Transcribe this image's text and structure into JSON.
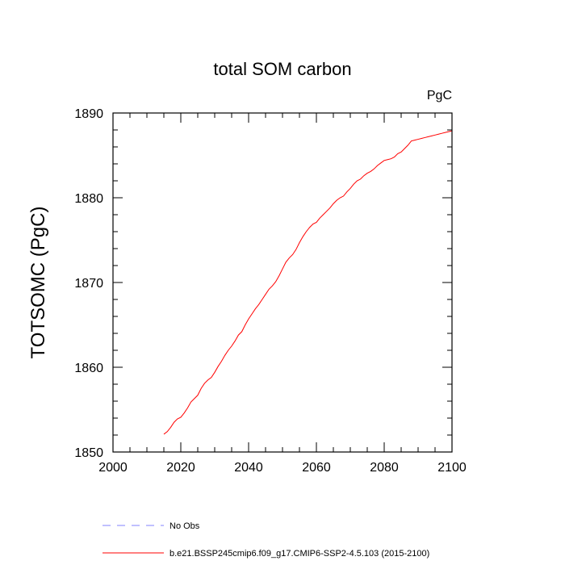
{
  "chart_data": {
    "type": "line",
    "title": "total SOM carbon",
    "units_label": "PgC",
    "ylabel": "TOTSOMC  (PgC)",
    "xlabel": "",
    "xlim": [
      2000,
      2100
    ],
    "ylim": [
      1850,
      1890
    ],
    "x_ticks": [
      2000,
      2020,
      2040,
      2060,
      2080,
      2100
    ],
    "y_ticks": [
      1850,
      1860,
      1870,
      1880,
      1890
    ],
    "x_tick_labels": [
      "2000",
      "2020",
      "2040",
      "2060",
      "2080",
      "2100"
    ],
    "y_tick_labels": [
      "1850",
      "1860",
      "1870",
      "1880",
      "1890"
    ],
    "series": [
      {
        "name": "b.e21.BSSP245cmip6.f09_g17.CMIP6-SSP2-4.5.103 (2015-2100)",
        "color": "#ff0000",
        "style": "solid",
        "x": [
          2015,
          2016,
          2017,
          2018,
          2019,
          2020,
          2021,
          2022,
          2023,
          2024,
          2025,
          2026,
          2027,
          2028,
          2029,
          2030,
          2031,
          2032,
          2033,
          2034,
          2035,
          2036,
          2037,
          2038,
          2039,
          2040,
          2041,
          2042,
          2043,
          2044,
          2045,
          2046,
          2047,
          2048,
          2049,
          2050,
          2051,
          2052,
          2053,
          2054,
          2055,
          2056,
          2057,
          2058,
          2059,
          2060,
          2061,
          2062,
          2063,
          2064,
          2065,
          2066,
          2067,
          2068,
          2069,
          2070,
          2071,
          2072,
          2073,
          2074,
          2075,
          2076,
          2077,
          2078,
          2079,
          2080,
          2081,
          2082,
          2083,
          2084,
          2085,
          2086,
          2087,
          2088,
          2089,
          2090,
          2091,
          2092,
          2093,
          2094,
          2095,
          2096,
          2097,
          2098,
          2099,
          2100
        ],
        "values": [
          1852.1,
          1852.4,
          1852.9,
          1853.5,
          1853.9,
          1854.1,
          1854.6,
          1855.2,
          1855.9,
          1856.3,
          1856.7,
          1857.5,
          1858.1,
          1858.5,
          1858.8,
          1859.4,
          1860.1,
          1860.7,
          1861.4,
          1862.0,
          1862.5,
          1863.1,
          1863.8,
          1864.2,
          1865.0,
          1865.7,
          1866.3,
          1866.9,
          1867.4,
          1868.0,
          1868.6,
          1869.2,
          1869.6,
          1870.1,
          1870.8,
          1871.6,
          1872.4,
          1872.9,
          1873.3,
          1873.9,
          1874.7,
          1875.4,
          1876.0,
          1876.5,
          1876.9,
          1877.1,
          1877.6,
          1878.0,
          1878.4,
          1878.8,
          1879.3,
          1879.7,
          1880.0,
          1880.2,
          1880.7,
          1881.1,
          1881.6,
          1882.0,
          1882.2,
          1882.6,
          1882.9,
          1883.1,
          1883.4,
          1883.8,
          1884.1,
          1884.4,
          1884.5,
          1884.6,
          1884.8,
          1885.2,
          1885.4,
          1885.8,
          1886.2,
          1886.7,
          1886.8,
          1886.9,
          1887.0,
          1887.1,
          1887.2,
          1887.3,
          1887.4,
          1887.5,
          1887.6,
          1887.7,
          1887.8,
          1887.9
        ]
      }
    ],
    "legend": [
      {
        "label": "No Obs",
        "color": "#8080ff",
        "style": "dashed"
      },
      {
        "label": "b.e21.BSSP245cmip6.f09_g17.CMIP6-SSP2-4.5.103 (2015-2100)",
        "color": "#ff0000",
        "style": "solid"
      }
    ]
  }
}
